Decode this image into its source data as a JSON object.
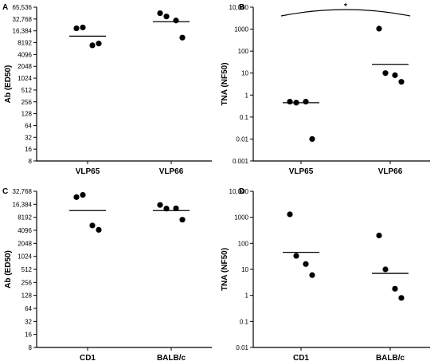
{
  "chart_data": [
    {
      "panel": "A",
      "type": "scatter",
      "ylabel": "Ab (ED50)",
      "scale": "log2",
      "ylim": [
        8,
        65536
      ],
      "yticks": [
        "8",
        "16",
        "32",
        "64",
        "128",
        "256",
        "512",
        "1024",
        "2048",
        "4096",
        "8192",
        "16,384",
        "32,768",
        "65,536"
      ],
      "categories": [
        "VLP65",
        "VLP66"
      ],
      "points": [
        [
          19000,
          20000,
          7000,
          7800
        ],
        [
          46000,
          38000,
          30000,
          11000
        ]
      ],
      "means": [
        12000,
        28000
      ],
      "grid": false
    },
    {
      "panel": "B",
      "type": "scatter",
      "ylabel": "TNA (NF50)",
      "scale": "log10",
      "ylim": [
        0.001,
        10000
      ],
      "yticks": [
        "0.001",
        "0.01",
        "0.1",
        "1",
        "10",
        "100",
        "1000",
        "10,000"
      ],
      "categories": [
        "VLP65",
        "VLP66"
      ],
      "points": [
        [
          0.5,
          0.45,
          0.5,
          0.01
        ],
        [
          1050,
          10,
          8,
          4
        ]
      ],
      "means": [
        0.45,
        25
      ],
      "significance": "*",
      "grid": false
    },
    {
      "panel": "C",
      "type": "scatter",
      "ylabel": "Ab (ED50)",
      "scale": "log2",
      "ylim": [
        8,
        32768
      ],
      "yticks": [
        "8",
        "16",
        "32",
        "64",
        "128",
        "256",
        "512",
        "1024",
        "2048",
        "4096",
        "8192",
        "16,384",
        "32,768"
      ],
      "categories": [
        "CD1",
        "BALB/c"
      ],
      "points": [
        [
          24000,
          27000,
          5300,
          4200
        ],
        [
          15800,
          13000,
          13200,
          7200
        ]
      ],
      "means": [
        11700,
        11700
      ],
      "grid": false
    },
    {
      "panel": "D",
      "type": "scatter",
      "ylabel": "TNA (NF50)",
      "scale": "log10",
      "ylim": [
        0.01,
        10000
      ],
      "yticks": [
        "0.01",
        "0.1",
        "1",
        "10",
        "100",
        "1000",
        "10,000"
      ],
      "categories": [
        "CD1",
        "BALB/c"
      ],
      "points": [
        [
          1300,
          33,
          16,
          6
        ],
        [
          200,
          10,
          1.8,
          0.8
        ]
      ],
      "means": [
        45,
        7
      ],
      "grid": false
    }
  ]
}
